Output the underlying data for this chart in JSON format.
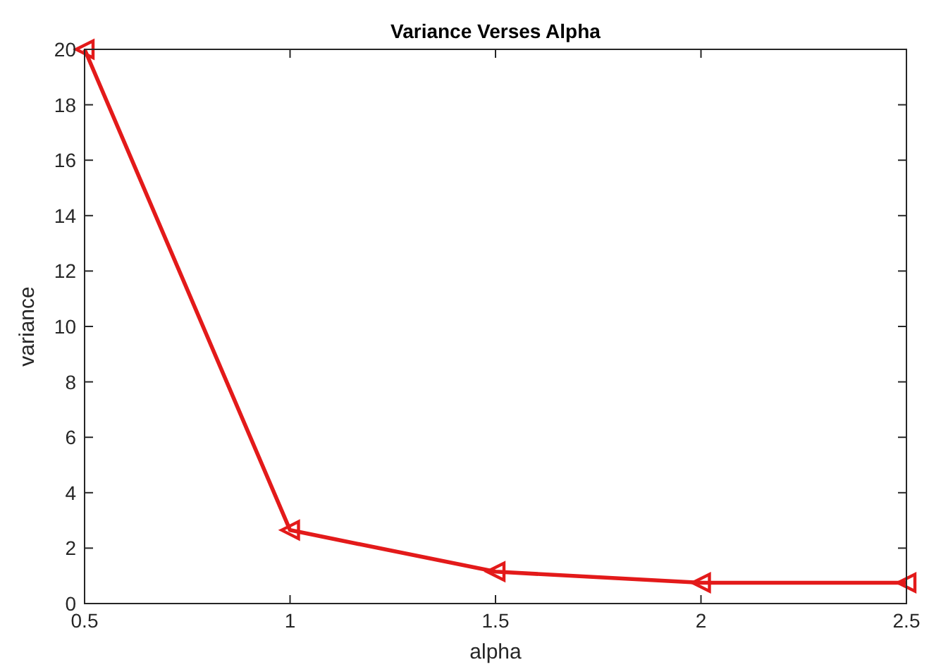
{
  "chart_data": {
    "type": "line",
    "title": "Variance Verses Alpha",
    "xlabel": "alpha",
    "ylabel": "variance",
    "x": [
      0.5,
      1,
      1.5,
      2,
      2.5
    ],
    "series": [
      {
        "color": "#e31a1a",
        "values": [
          20,
          2.65,
          1.15,
          0.75,
          0.75
        ]
      }
    ],
    "xlim": [
      0.5,
      2.5
    ],
    "xticks": [
      0.5,
      1,
      1.5,
      2,
      2.5
    ],
    "ylim": [
      0,
      20
    ],
    "yticks": [
      0,
      2,
      4,
      6,
      8,
      10,
      12,
      14,
      16,
      18,
      20
    ],
    "marker": "triangle",
    "line_style": "solid"
  }
}
